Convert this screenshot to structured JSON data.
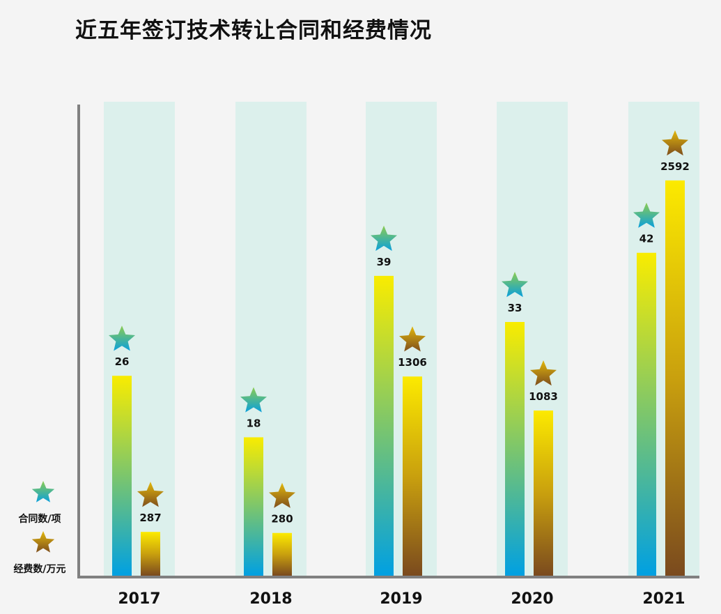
{
  "title": "近五年签订技术转让合同和经费情况",
  "chart_data": {
    "type": "bar",
    "title": "近五年签订技术转让合同和经费情况",
    "categories": [
      "2017",
      "2018",
      "2019",
      "2020",
      "2021"
    ],
    "series": [
      {
        "name": "合同数/项",
        "values": [
          26,
          18,
          39,
          33,
          42
        ],
        "colors": [
          "#f7ec00",
          "#00a0e0"
        ],
        "marker": "star-icon"
      },
      {
        "name": "经费数/万元",
        "values": [
          287,
          280,
          1306,
          1083,
          2592
        ],
        "colors": [
          "#fbe800",
          "#7a4a1e"
        ],
        "marker": "star-icon"
      }
    ],
    "legend_position": "bottom-left",
    "grid": false,
    "band_color": "#dcf0ec"
  }
}
